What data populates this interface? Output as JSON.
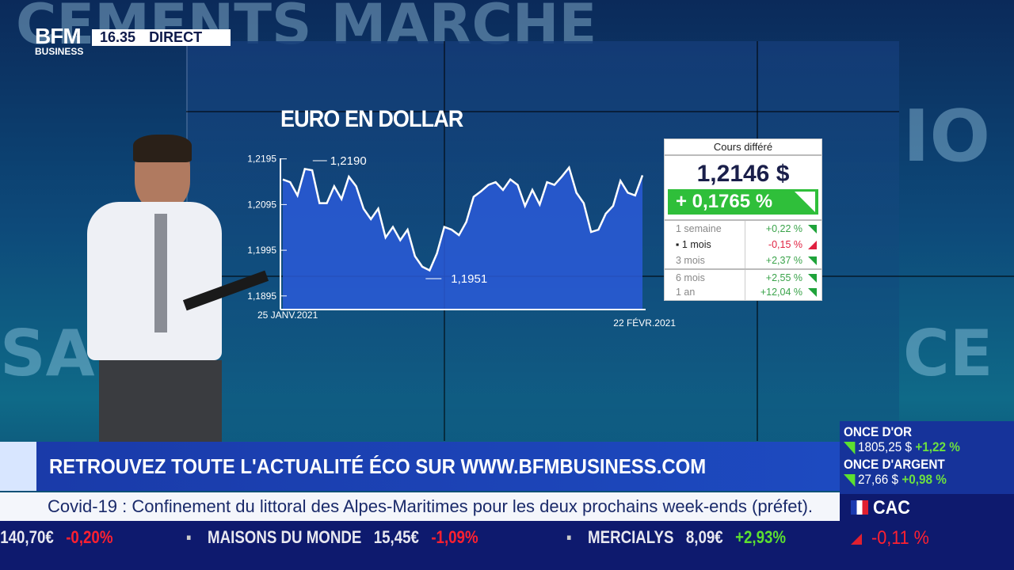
{
  "broadcast": {
    "logo": "BFM BUSINESS",
    "logo_top": "BFM",
    "logo_bottom": "BUSINESS",
    "time": "16.35",
    "live": "DIRECT"
  },
  "chart_data": {
    "type": "area",
    "title": "EURO EN DOLLAR",
    "x_start_label": "25 JANV.2021",
    "x_end_label": "22 FÉVR.2021",
    "yticks": [
      "1,2195",
      "1,2095",
      "1,1995",
      "1,1895"
    ],
    "ylim": [
      1.1855,
      1.2215
    ],
    "annotations": {
      "max": "1,2190",
      "min": "1,1951"
    },
    "values": [
      1.215,
      1.2144,
      1.2115,
      1.2173,
      1.217,
      1.2098,
      1.2098,
      1.2135,
      1.2107,
      1.2156,
      1.2135,
      1.2086,
      1.2063,
      1.2086,
      1.2023,
      1.2046,
      1.2017,
      1.204,
      1.1982,
      1.1959,
      1.1951,
      1.1988,
      1.2046,
      1.204,
      1.2028,
      1.2057,
      1.2112,
      1.2124,
      1.2138,
      1.2144,
      1.2127,
      1.215,
      1.2138,
      1.2092,
      1.2127,
      1.2095,
      1.2144,
      1.2138,
      1.2156,
      1.2176,
      1.2121,
      1.2098,
      1.2035,
      1.204,
      1.2075,
      1.2092,
      1.2147,
      1.2121,
      1.2115,
      1.2159
    ],
    "fill_color": "#2a5ad8",
    "line_color": "#ffffff"
  },
  "quote": {
    "header": "Cours différé",
    "price": "1,2146 $",
    "change": "+ 0,1765 %",
    "change_color": "#2fbf3a",
    "periods": [
      {
        "label": "1 semaine",
        "value": "+0,22 %",
        "dir": "up"
      },
      {
        "label": "▪ 1 mois",
        "value": "-0,15 %",
        "dir": "down"
      },
      {
        "label": "3 mois",
        "value": "+2,37 %",
        "dir": "up"
      },
      {
        "label": "6 mois",
        "value": "+2,55 %",
        "dir": "up"
      },
      {
        "label": "1 an",
        "value": "+12,04 %",
        "dir": "up"
      }
    ]
  },
  "banner": "RETROUVEZ TOUTE L'ACTUALITÉ ÉCO SUR WWW.BFMBUSINESS.COM",
  "news": "Covid-19 : Confinement du littoral des Alpes-Maritimes pour les deux prochains week-ends (préfet).",
  "ticker": [
    {
      "name": "",
      "price": "140,70€",
      "change": "-0,20%",
      "dir": "down"
    },
    {
      "name": "MAISONS DU MONDE",
      "price": "15,45€",
      "change": "-1,09%",
      "dir": "down"
    },
    {
      "name": "MERCIALYS",
      "price": "8,09€",
      "change": "+2,93%",
      "dir": "up"
    }
  ],
  "markets": {
    "gold": {
      "label": "ONCE D'OR",
      "price": "1805,25 $",
      "change": "+1,22 %"
    },
    "silver": {
      "label": "ONCE D'ARGENT",
      "price": "27,66 $",
      "change": "+0,98 %"
    },
    "index": {
      "label": "CAC",
      "change": "-0,11 %"
    }
  }
}
